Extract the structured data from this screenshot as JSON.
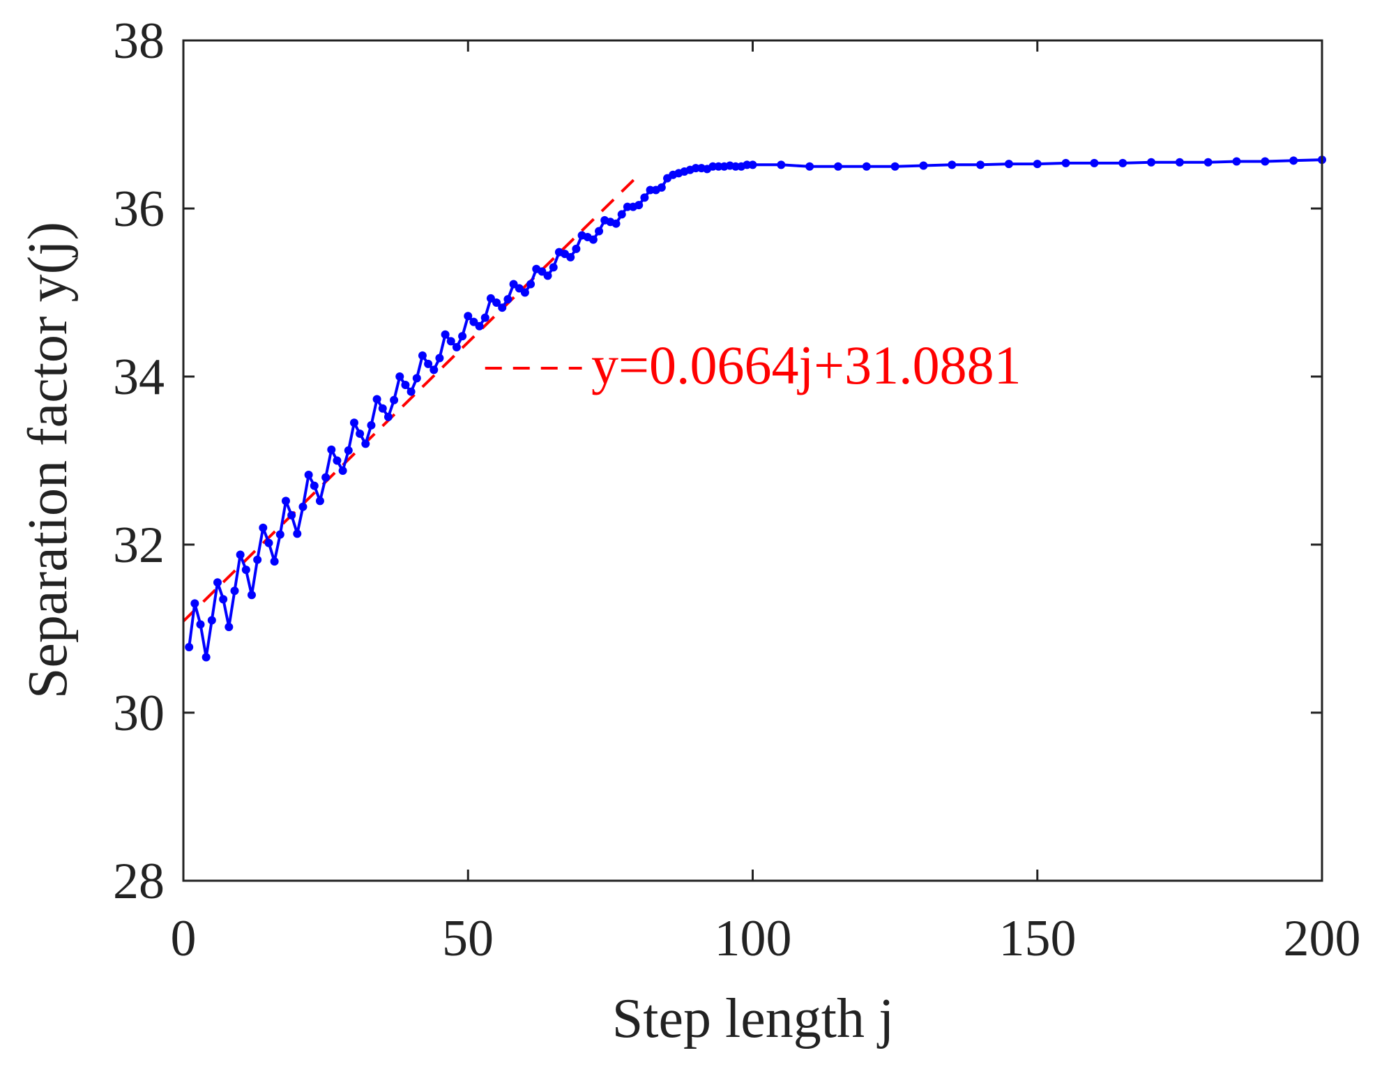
{
  "chart_data": {
    "type": "line",
    "xlabel": "Step length j",
    "ylabel": "Separation factor y(j)",
    "xlim": [
      0,
      200
    ],
    "ylim": [
      28,
      38
    ],
    "xticks": [
      "0",
      "50",
      "100",
      "150",
      "200"
    ],
    "yticks": [
      "28",
      "30",
      "32",
      "34",
      "36",
      "38"
    ],
    "grid": false,
    "colors": {
      "series": "#0000ff",
      "fit": "#ff0000",
      "axes": "#222222"
    },
    "series": [
      {
        "x": [
          1,
          2,
          3,
          4,
          5,
          6,
          7,
          8,
          9,
          10,
          11,
          12,
          13,
          14,
          15,
          16,
          17,
          18,
          19,
          20,
          21,
          22,
          23,
          24,
          25,
          26,
          27,
          28,
          29,
          30,
          31,
          32,
          33,
          34,
          35,
          36,
          37,
          38,
          39,
          40,
          41,
          42,
          43,
          44,
          45,
          46,
          47,
          48,
          49,
          50,
          51,
          52,
          53,
          54,
          55,
          56,
          57,
          58,
          59,
          60,
          61,
          62,
          63,
          64,
          65,
          66,
          67,
          68,
          69,
          70,
          71,
          72,
          73,
          74,
          75,
          76,
          77,
          78,
          79,
          80,
          81,
          82,
          83,
          84,
          85,
          86,
          87,
          88,
          89,
          90,
          91,
          92,
          93,
          94,
          95,
          96,
          97,
          98,
          99,
          100,
          105,
          110,
          115,
          120,
          125,
          130,
          135,
          140,
          145,
          150,
          155,
          160,
          165,
          170,
          175,
          180,
          185,
          190,
          195,
          200
        ],
        "y": [
          30.78,
          31.3,
          31.05,
          30.66,
          31.1,
          31.55,
          31.35,
          31.02,
          31.45,
          31.88,
          31.7,
          31.4,
          31.82,
          32.2,
          32.02,
          31.8,
          32.12,
          32.52,
          32.35,
          32.13,
          32.45,
          32.83,
          32.7,
          32.52,
          32.8,
          33.13,
          33.0,
          32.88,
          33.12,
          33.45,
          33.32,
          33.2,
          33.42,
          33.73,
          33.62,
          33.52,
          33.72,
          34.0,
          33.9,
          33.82,
          33.98,
          34.25,
          34.15,
          34.08,
          34.22,
          34.5,
          34.42,
          34.35,
          34.48,
          34.72,
          34.65,
          34.6,
          34.7,
          34.93,
          34.88,
          34.82,
          34.92,
          35.1,
          35.05,
          35.0,
          35.1,
          35.28,
          35.25,
          35.2,
          35.3,
          35.48,
          35.46,
          35.42,
          35.52,
          35.68,
          35.66,
          35.63,
          35.73,
          35.86,
          35.84,
          35.82,
          35.93,
          36.02,
          36.02,
          36.04,
          36.13,
          36.22,
          36.22,
          36.25,
          36.36,
          36.4,
          36.42,
          36.44,
          36.46,
          36.48,
          36.48,
          36.47,
          36.5,
          36.5,
          36.5,
          36.51,
          36.5,
          36.5,
          36.52,
          36.52,
          36.52,
          36.5,
          36.5,
          36.5,
          36.5,
          36.51,
          36.52,
          36.52,
          36.53,
          36.53,
          36.54,
          36.54,
          36.54,
          36.55,
          36.55,
          36.55,
          36.56,
          36.56,
          36.57,
          36.58
        ]
      }
    ],
    "fit_line": {
      "label": "y=0.0664j+31.0881",
      "slope": 0.0664,
      "intercept": 31.0881,
      "x_range": [
        0,
        80
      ],
      "legend_x": [
        53,
        70
      ],
      "legend_y": 34.1
    }
  }
}
